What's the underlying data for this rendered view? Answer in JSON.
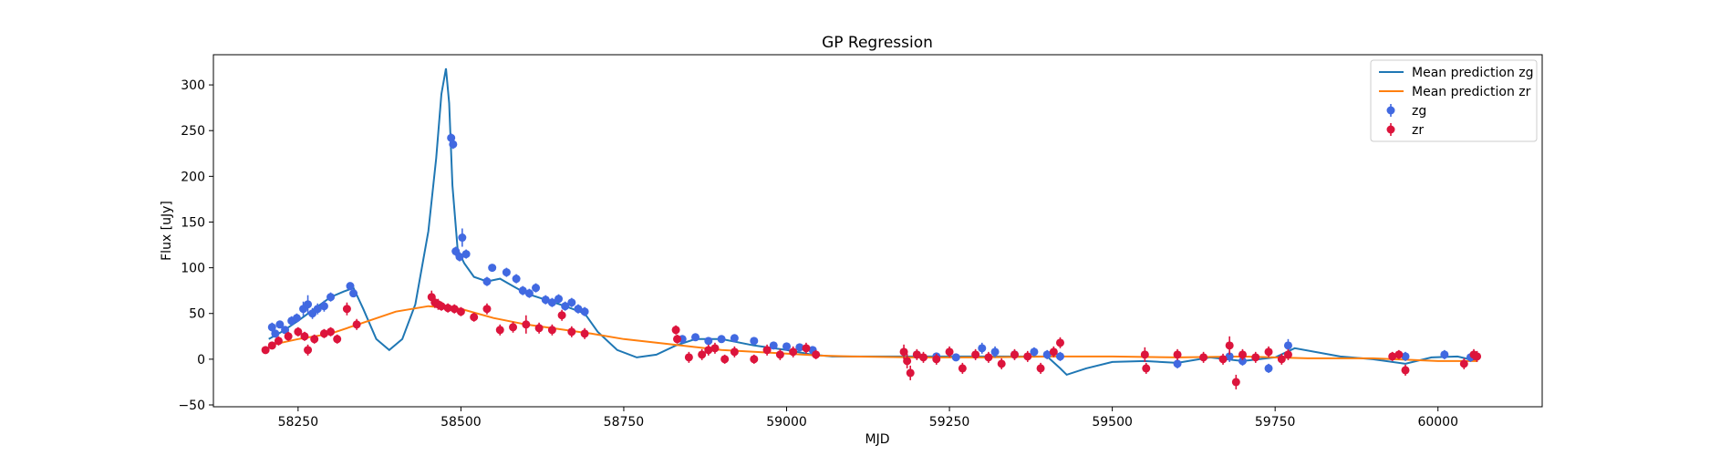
{
  "chart_data": {
    "type": "scatter",
    "title": "GP Regression",
    "xlabel": "MJD",
    "ylabel": "Flux [uJy]",
    "xlim": [
      58120,
      60160
    ],
    "ylim": [
      -52,
      333
    ],
    "xticks": [
      58250,
      58500,
      58750,
      59000,
      59250,
      59500,
      59750,
      60000
    ],
    "yticks": [
      -50,
      0,
      50,
      100,
      150,
      200,
      250,
      300
    ],
    "grid": false,
    "legend_placement": "top-right",
    "series": [
      {
        "name": "Mean prediction zg",
        "kind": "line",
        "color": "#1f77b4",
        "x": [
          58205,
          58225,
          58250,
          58275,
          58300,
          58320,
          58335,
          58350,
          58370,
          58390,
          58410,
          58430,
          58450,
          58462,
          58470,
          58477,
          58482,
          58487,
          58495,
          58505,
          58520,
          58540,
          58560,
          58580,
          58600,
          58630,
          58660,
          58690,
          58710,
          58740,
          58770,
          58800,
          58830,
          58860,
          58900,
          58950,
          59000,
          59040,
          59070,
          59100,
          59200,
          59300,
          59400,
          59420,
          59430,
          59460,
          59500,
          59550,
          59600,
          59650,
          59700,
          59750,
          59780,
          59850,
          59900,
          59950,
          59990,
          60030,
          60060
        ],
        "y": [
          22,
          30,
          42,
          55,
          68,
          74,
          78,
          55,
          22,
          10,
          22,
          60,
          140,
          220,
          290,
          318,
          280,
          190,
          120,
          105,
          90,
          85,
          88,
          80,
          72,
          65,
          58,
          50,
          30,
          10,
          2,
          5,
          15,
          22,
          22,
          15,
          10,
          5,
          3,
          3,
          3,
          3,
          3,
          -10,
          -17,
          -10,
          -3,
          -2,
          -4,
          2,
          -2,
          2,
          12,
          3,
          0,
          -5,
          2,
          3,
          -2
        ]
      },
      {
        "name": "Mean prediction zr",
        "kind": "line",
        "color": "#ff7f0e",
        "x": [
          58205,
          58250,
          58300,
          58350,
          58400,
          58450,
          58500,
          58550,
          58600,
          58650,
          58700,
          58750,
          58800,
          58850,
          58900,
          58950,
          59000,
          59050,
          59100,
          59200,
          59300,
          59400,
          59500,
          59600,
          59700,
          59800,
          59900,
          60000,
          60060
        ],
        "y": [
          15,
          22,
          28,
          40,
          52,
          58,
          55,
          45,
          38,
          33,
          28,
          22,
          18,
          14,
          10,
          8,
          6,
          4,
          3,
          2,
          2,
          3,
          3,
          2,
          3,
          1,
          1,
          -2,
          -2
        ]
      },
      {
        "name": "zg",
        "kind": "errorbar",
        "color": "#4169e1",
        "x": [
          58210,
          58215,
          58222,
          58230,
          58240,
          58248,
          58258,
          58265,
          58272,
          58280,
          58290,
          58300,
          58330,
          58335,
          58485,
          58488,
          58492,
          58498,
          58502,
          58508,
          58540,
          58548,
          58570,
          58585,
          58595,
          58605,
          58615,
          58630,
          58640,
          58650,
          58660,
          58670,
          58680,
          58690,
          58840,
          58860,
          58880,
          58900,
          58920,
          58950,
          58980,
          59000,
          59020,
          59040,
          59200,
          59230,
          59260,
          59300,
          59320,
          59350,
          59380,
          59400,
          59420,
          59600,
          59680,
          59700,
          59740,
          59770,
          59950,
          60010,
          60050
        ],
        "y": [
          35,
          28,
          38,
          32,
          42,
          45,
          55,
          60,
          50,
          55,
          58,
          68,
          80,
          72,
          242,
          235,
          118,
          112,
          133,
          115,
          85,
          100,
          95,
          88,
          75,
          72,
          78,
          65,
          62,
          66,
          58,
          62,
          55,
          52,
          22,
          24,
          20,
          22,
          23,
          20,
          15,
          14,
          13,
          10,
          5,
          3,
          2,
          12,
          8,
          5,
          8,
          5,
          3,
          -5,
          3,
          -2,
          -10,
          15,
          3,
          5,
          2
        ],
        "err": [
          5,
          4,
          4,
          4,
          5,
          5,
          8,
          10,
          6,
          6,
          6,
          5,
          4,
          4,
          5,
          5,
          5,
          5,
          10,
          5,
          5,
          4,
          5,
          5,
          5,
          5,
          5,
          5,
          5,
          5,
          5,
          5,
          5,
          5,
          4,
          3,
          3,
          4,
          4,
          3,
          3,
          3,
          3,
          3,
          4,
          4,
          4,
          6,
          6,
          5,
          5,
          5,
          5,
          5,
          6,
          5,
          5,
          7,
          5,
          5,
          5
        ]
      },
      {
        "name": "zr",
        "kind": "errorbar",
        "color": "#dc143c",
        "x": [
          58200,
          58210,
          58220,
          58235,
          58250,
          58260,
          58265,
          58275,
          58290,
          58300,
          58310,
          58325,
          58340,
          58455,
          58460,
          58465,
          58470,
          58480,
          58490,
          58500,
          58520,
          58540,
          58560,
          58580,
          58600,
          58620,
          58640,
          58655,
          58670,
          58690,
          58830,
          58832,
          58850,
          58870,
          58880,
          58890,
          58905,
          58920,
          58950,
          58970,
          58990,
          59010,
          59030,
          59045,
          59180,
          59185,
          59190,
          59200,
          59210,
          59230,
          59250,
          59270,
          59290,
          59310,
          59330,
          59350,
          59370,
          59390,
          59410,
          59420,
          59550,
          59552,
          59600,
          59640,
          59670,
          59680,
          59690,
          59700,
          59720,
          59740,
          59760,
          59770,
          59930,
          59940,
          59950,
          60040,
          60055,
          60060
        ],
        "y": [
          10,
          15,
          20,
          25,
          30,
          25,
          10,
          22,
          28,
          30,
          22,
          55,
          38,
          68,
          62,
          60,
          58,
          56,
          55,
          52,
          46,
          55,
          32,
          35,
          38,
          34,
          32,
          48,
          30,
          28,
          32,
          22,
          2,
          5,
          10,
          12,
          0,
          8,
          0,
          10,
          5,
          8,
          12,
          5,
          8,
          -2,
          -15,
          5,
          2,
          0,
          8,
          -10,
          5,
          2,
          -5,
          5,
          3,
          -10,
          8,
          18,
          5,
          -10,
          5,
          2,
          0,
          15,
          -25,
          5,
          2,
          8,
          0,
          5,
          3,
          5,
          -12,
          -5,
          5,
          3
        ],
        "err": [
          3,
          4,
          5,
          5,
          5,
          5,
          6,
          5,
          5,
          5,
          5,
          7,
          6,
          7,
          6,
          6,
          5,
          5,
          5,
          5,
          5,
          6,
          6,
          6,
          10,
          6,
          6,
          6,
          6,
          6,
          5,
          5,
          6,
          6,
          6,
          6,
          5,
          6,
          5,
          6,
          6,
          6,
          6,
          5,
          8,
          8,
          8,
          6,
          6,
          6,
          6,
          6,
          6,
          6,
          6,
          6,
          6,
          6,
          6,
          6,
          8,
          6,
          6,
          6,
          6,
          10,
          8,
          6,
          6,
          6,
          6,
          6,
          5,
          5,
          6,
          6,
          6,
          6
        ]
      }
    ]
  }
}
